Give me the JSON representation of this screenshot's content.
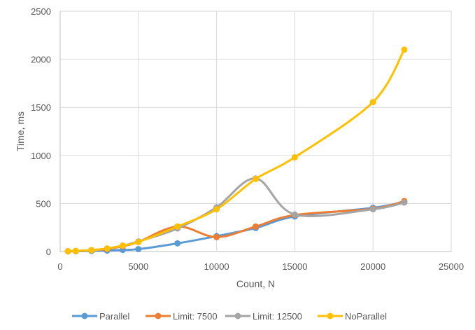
{
  "chart_data": {
    "type": "line",
    "xlabel": "Count, N",
    "ylabel": "Time, ms",
    "xlim": [
      0,
      25000
    ],
    "ylim": [
      0,
      2500
    ],
    "xticks": [
      0,
      5000,
      10000,
      15000,
      20000,
      25000
    ],
    "yticks": [
      0,
      500,
      1000,
      1500,
      2000,
      2500
    ],
    "grid": true,
    "smooth": true,
    "legend_position": "bottom",
    "series": [
      {
        "name": "Parallel",
        "color": "#5B9BD5",
        "x": [
          500,
          1000,
          2000,
          3000,
          4000,
          5000,
          7500,
          10000,
          12500,
          15000,
          20000,
          22000
        ],
        "y": [
          2,
          3,
          6,
          10,
          17,
          25,
          85,
          160,
          245,
          365,
          455,
          515
        ]
      },
      {
        "name": "Limit: 7500",
        "color": "#ED7D31",
        "x": [
          500,
          1000,
          2000,
          3000,
          4000,
          5000,
          7500,
          10000,
          12500,
          15000,
          20000,
          22000
        ],
        "y": [
          3,
          5,
          12,
          25,
          55,
          100,
          260,
          150,
          260,
          380,
          445,
          525
        ]
      },
      {
        "name": "Limit: 12500",
        "color": "#A5A5A5",
        "x": [
          500,
          1000,
          2000,
          3000,
          4000,
          5000,
          7500,
          10000,
          12500,
          15000,
          20000,
          22000
        ],
        "y": [
          3,
          6,
          15,
          30,
          60,
          105,
          240,
          460,
          760,
          385,
          440,
          510
        ]
      },
      {
        "name": "NoParallel",
        "color": "#FFC000",
        "x": [
          500,
          1000,
          2000,
          3000,
          4000,
          5000,
          7500,
          10000,
          12500,
          15000,
          20000,
          22000
        ],
        "y": [
          3,
          6,
          15,
          32,
          62,
          100,
          260,
          440,
          755,
          980,
          1555,
          2100
        ]
      }
    ]
  }
}
